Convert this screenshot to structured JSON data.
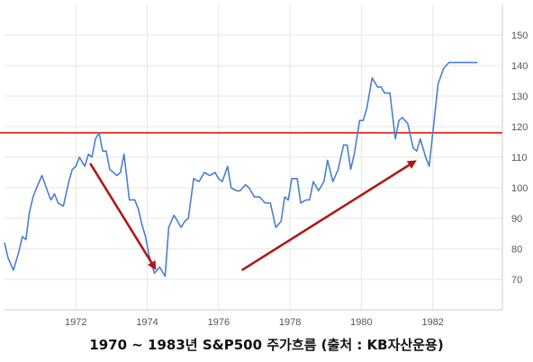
{
  "caption": "1970 ~ 1983년 S&P500 주가흐름 (출처 : KB자산운용)",
  "colors": {
    "line": "#4a7fd0",
    "reference": "#e03030",
    "arrow": "#b01818",
    "grid": "#e6e6e6",
    "axis": "#cccccc"
  },
  "chart_data": {
    "type": "line",
    "title": "",
    "xlabel": "",
    "ylabel": "",
    "xlim": [
      1970.0,
      1983.95
    ],
    "ylim": [
      60,
      160
    ],
    "x_ticks": [
      1972,
      1974,
      1976,
      1978,
      1980,
      1982
    ],
    "y_ticks": [
      70,
      80,
      90,
      100,
      110,
      120,
      130,
      140,
      150
    ],
    "grid": true,
    "series": [
      {
        "x": [
          1970.0,
          1970.1,
          1970.25,
          1970.4,
          1970.5,
          1970.6,
          1970.7,
          1970.8,
          1970.9,
          1971.05,
          1971.2,
          1971.3,
          1971.4,
          1971.5,
          1971.65,
          1971.8,
          1971.9,
          1972.0,
          1972.1,
          1972.25,
          1972.35,
          1972.45,
          1972.55,
          1972.65,
          1972.75,
          1972.85,
          1972.95,
          1973.05,
          1973.15,
          1973.25,
          1973.35,
          1973.5,
          1973.65,
          1973.75,
          1973.85,
          1973.95,
          1974.05,
          1974.2,
          1974.35,
          1974.5,
          1974.6,
          1974.75,
          1974.85,
          1974.95,
          1975.05,
          1975.15,
          1975.3,
          1975.45,
          1975.6,
          1975.75,
          1975.9,
          1976.0,
          1976.1,
          1976.25,
          1976.35,
          1976.5,
          1976.6,
          1976.75,
          1976.85,
          1977.0,
          1977.15,
          1977.3,
          1977.45,
          1977.6,
          1977.75,
          1977.85,
          1977.95,
          1978.05,
          1978.2,
          1978.3,
          1978.45,
          1978.55,
          1978.65,
          1978.8,
          1978.95,
          1979.05,
          1979.2,
          1979.35,
          1979.5,
          1979.6,
          1979.7,
          1979.8,
          1979.95,
          1980.05,
          1980.15,
          1980.3,
          1980.45,
          1980.55,
          1980.65,
          1980.8,
          1980.95,
          1981.05,
          1981.15,
          1981.3,
          1981.45,
          1981.55,
          1981.65,
          1981.8,
          1981.9,
          1982.0,
          1982.15,
          1982.3,
          1982.45,
          1982.6,
          1982.75,
          1982.85,
          1982.95,
          1983.05,
          1983.15,
          1983.25
        ],
        "y": [
          82,
          77,
          73,
          79,
          84,
          83,
          92,
          97,
          100,
          104,
          99,
          96,
          98,
          95,
          94,
          102,
          106,
          107,
          110,
          107,
          111,
          110,
          116,
          118,
          112,
          112,
          106,
          105,
          104,
          105,
          111,
          96,
          96,
          93,
          88,
          84,
          78,
          72,
          74,
          71,
          87,
          91,
          89,
          87,
          89,
          90,
          103,
          102,
          105,
          104,
          105,
          103,
          102,
          107,
          100,
          99,
          99,
          101,
          100,
          97,
          97,
          95,
          95,
          87,
          89,
          97,
          96,
          103,
          103,
          95,
          96,
          96,
          102,
          99,
          102,
          109,
          102,
          106,
          114,
          114,
          106,
          111,
          122,
          122,
          126,
          136,
          133,
          133,
          131,
          131,
          116,
          122,
          123,
          121,
          113,
          112,
          116,
          110,
          107,
          118,
          134,
          139,
          141,
          141,
          141,
          141,
          141,
          141,
          141,
          141
        ]
      }
    ],
    "reference_lines": [
      {
        "y": 118
      }
    ],
    "arrows": [
      {
        "from": [
          1972.4,
          108
        ],
        "to": [
          1974.25,
          73
        ]
      },
      {
        "from": [
          1976.65,
          73
        ],
        "to": [
          1981.55,
          109
        ]
      }
    ]
  }
}
